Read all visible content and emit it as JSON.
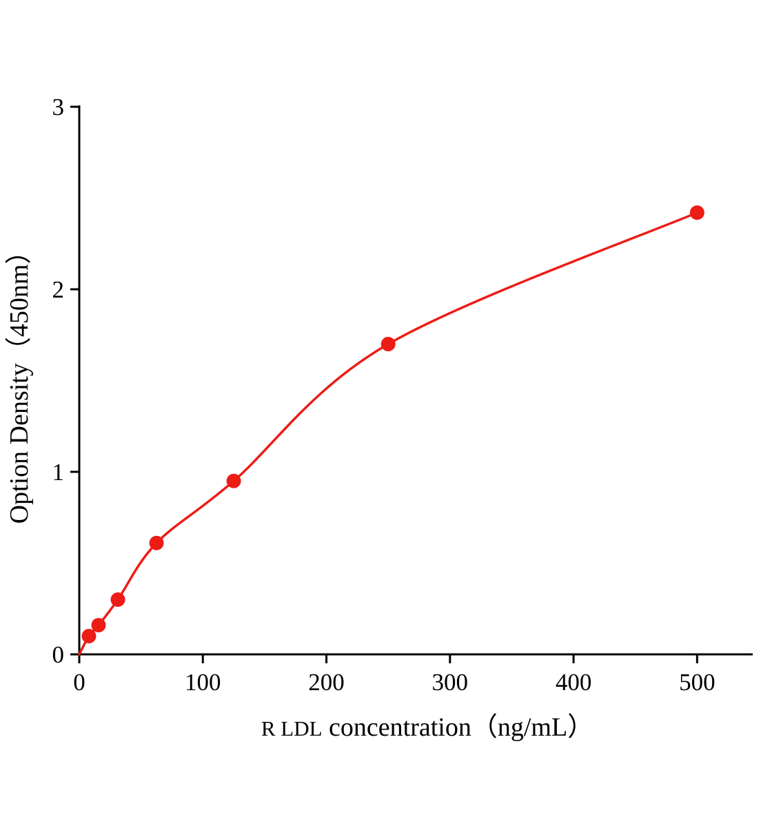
{
  "chart_data": {
    "type": "scatter",
    "title": "",
    "xlabel_prefix": "R LDL",
    "xlabel_rest": " concentration（ng/mL）",
    "ylabel": "Option Density（450nm）",
    "x": [
      0,
      7.8,
      15.6,
      31.25,
      62.5,
      125,
      250,
      500
    ],
    "y": [
      0,
      0.1,
      0.16,
      0.3,
      0.61,
      0.95,
      1.7,
      2.42
    ],
    "xlim": [
      0,
      545
    ],
    "ylim": [
      0,
      3
    ],
    "x_ticks": [
      0,
      100,
      200,
      300,
      400,
      500
    ],
    "y_ticks": [
      0,
      1,
      2,
      3
    ],
    "curve_color": "#ed1c16",
    "axis_color": "#000000",
    "grid": false,
    "legend": null,
    "marker_radius": 10.5
  }
}
